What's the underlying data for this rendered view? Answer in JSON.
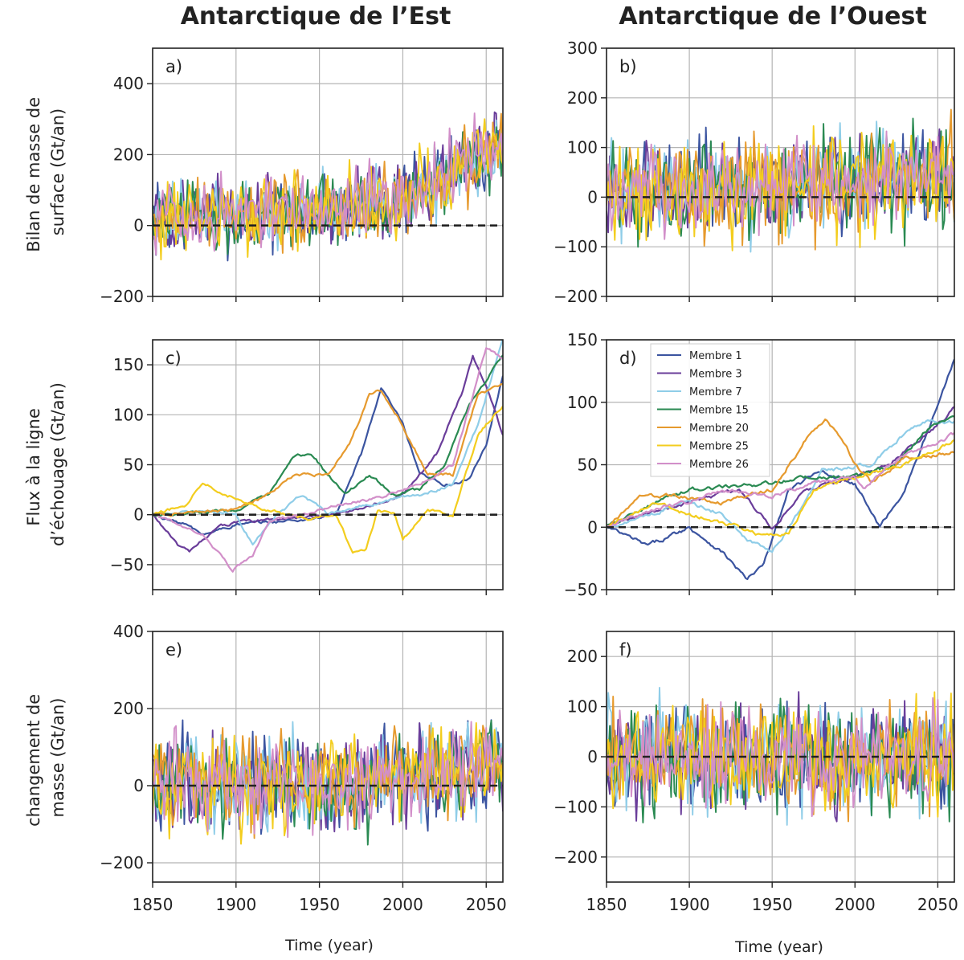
{
  "figure": {
    "columns": [
      "Antarctique de l’Est",
      "Antarctique de l’Ouest"
    ],
    "xlabel": "Time (year)",
    "xticks": [
      1850,
      1900,
      1950,
      2000,
      2050
    ],
    "xlim": [
      1850,
      2060
    ],
    "rows": [
      {
        "ylabel_lines": [
          "Bilan de masse de",
          "surface (Gt/an)"
        ]
      },
      {
        "ylabel_lines": [
          "Flux à la ligne",
          "d’échouage (Gt/an)"
        ]
      },
      {
        "ylabel_lines": [
          "changement de",
          "masse (Gt/an)"
        ]
      }
    ]
  },
  "chart_data": [
    {
      "id": "a",
      "type": "line",
      "label": "a)",
      "region": "Antarctique de l’Est",
      "ylim": [
        -200,
        500
      ],
      "yticks": [
        -200,
        0,
        200,
        400
      ],
      "xlim": [
        1850,
        2060
      ],
      "kind": "noise",
      "base": [
        [
          1850,
          20
        ],
        [
          1950,
          45
        ],
        [
          2000,
          70
        ],
        [
          2060,
          230
        ]
      ],
      "amp": 60
    },
    {
      "id": "b",
      "type": "line",
      "label": "b)",
      "region": "Antarctique de l’Ouest",
      "ylim": [
        -200,
        300
      ],
      "yticks": [
        -200,
        -100,
        0,
        100,
        200,
        300
      ],
      "xlim": [
        1850,
        2060
      ],
      "kind": "noise",
      "base": [
        [
          1850,
          10
        ],
        [
          2060,
          40
        ]
      ],
      "amp": 55
    },
    {
      "id": "c",
      "type": "line",
      "label": "c)",
      "region": "Antarctique de l’Est",
      "ylim": [
        -75,
        175
      ],
      "yticks": [
        -50,
        0,
        50,
        100,
        150
      ],
      "xlim": [
        1850,
        2060
      ],
      "kind": "smooth",
      "members": {
        "Membre 1": [
          [
            1850,
            0
          ],
          [
            1870,
            -10
          ],
          [
            1880,
            -20
          ],
          [
            1900,
            -10
          ],
          [
            1940,
            -5
          ],
          [
            1960,
            0
          ],
          [
            1975,
            60
          ],
          [
            1987,
            127
          ],
          [
            2000,
            90
          ],
          [
            2010,
            40
          ],
          [
            2025,
            30
          ],
          [
            2040,
            35
          ],
          [
            2050,
            70
          ],
          [
            2060,
            140
          ]
        ],
        "Membre 3": [
          [
            1850,
            0
          ],
          [
            1865,
            -30
          ],
          [
            1872,
            -38
          ],
          [
            1890,
            -10
          ],
          [
            1920,
            -5
          ],
          [
            1960,
            0
          ],
          [
            2000,
            20
          ],
          [
            2020,
            60
          ],
          [
            2035,
            120
          ],
          [
            2042,
            158
          ],
          [
            2050,
            130
          ],
          [
            2060,
            80
          ]
        ],
        "Membre 7": [
          [
            1850,
            0
          ],
          [
            1880,
            5
          ],
          [
            1900,
            0
          ],
          [
            1910,
            -30
          ],
          [
            1925,
            0
          ],
          [
            1940,
            20
          ],
          [
            1955,
            0
          ],
          [
            1980,
            10
          ],
          [
            2010,
            20
          ],
          [
            2030,
            30
          ],
          [
            2045,
            90
          ],
          [
            2060,
            175
          ]
        ],
        "Membre 15": [
          [
            1850,
            0
          ],
          [
            1900,
            5
          ],
          [
            1920,
            20
          ],
          [
            1935,
            58
          ],
          [
            1945,
            62
          ],
          [
            1955,
            40
          ],
          [
            1965,
            20
          ],
          [
            1980,
            40
          ],
          [
            1995,
            20
          ],
          [
            2010,
            25
          ],
          [
            2025,
            50
          ],
          [
            2040,
            110
          ],
          [
            2060,
            160
          ]
        ],
        "Membre 20": [
          [
            1850,
            0
          ],
          [
            1900,
            5
          ],
          [
            1920,
            20
          ],
          [
            1935,
            40
          ],
          [
            1955,
            40
          ],
          [
            1968,
            70
          ],
          [
            1980,
            120
          ],
          [
            1987,
            125
          ],
          [
            2000,
            90
          ],
          [
            2015,
            40
          ],
          [
            2030,
            40
          ],
          [
            2045,
            120
          ],
          [
            2060,
            130
          ]
        ],
        "Membre 25": [
          [
            1850,
            0
          ],
          [
            1870,
            10
          ],
          [
            1880,
            33
          ],
          [
            1895,
            20
          ],
          [
            1910,
            10
          ],
          [
            1930,
            0
          ],
          [
            1945,
            -5
          ],
          [
            1960,
            0
          ],
          [
            1970,
            -38
          ],
          [
            1978,
            -35
          ],
          [
            1985,
            5
          ],
          [
            1995,
            0
          ],
          [
            2000,
            -25
          ],
          [
            2015,
            5
          ],
          [
            2030,
            0
          ],
          [
            2045,
            80
          ],
          [
            2060,
            110
          ]
        ],
        "Membre 26": [
          [
            1850,
            0
          ],
          [
            1880,
            -20
          ],
          [
            1890,
            -40
          ],
          [
            1898,
            -55
          ],
          [
            1910,
            -40
          ],
          [
            1920,
            -5
          ],
          [
            1945,
            0
          ],
          [
            1960,
            10
          ],
          [
            1980,
            15
          ],
          [
            2010,
            30
          ],
          [
            2030,
            50
          ],
          [
            2050,
            168
          ],
          [
            2060,
            155
          ]
        ]
      }
    },
    {
      "id": "d",
      "type": "line",
      "label": "d)",
      "region": "Antarctique de l’Ouest",
      "ylim": [
        -50,
        150
      ],
      "yticks": [
        -50,
        0,
        50,
        100,
        150
      ],
      "xlim": [
        1850,
        2060
      ],
      "kind": "smooth",
      "legend": [
        "Membre 1",
        "Membre 3",
        "Membre 7",
        "Membre 15",
        "Membre 20",
        "Membre 25",
        "Membre 26"
      ],
      "members": {
        "Membre 1": [
          [
            1850,
            0
          ],
          [
            1875,
            -15
          ],
          [
            1900,
            0
          ],
          [
            1920,
            -20
          ],
          [
            1935,
            -42
          ],
          [
            1945,
            -30
          ],
          [
            1960,
            30
          ],
          [
            1980,
            45
          ],
          [
            2000,
            35
          ],
          [
            2015,
            0
          ],
          [
            2030,
            30
          ],
          [
            2045,
            80
          ],
          [
            2060,
            135
          ]
        ],
        "Membre 3": [
          [
            1850,
            0
          ],
          [
            1870,
            10
          ],
          [
            1900,
            20
          ],
          [
            1930,
            30
          ],
          [
            1950,
            0
          ],
          [
            1970,
            30
          ],
          [
            2000,
            40
          ],
          [
            2020,
            50
          ],
          [
            2040,
            70
          ],
          [
            2060,
            95
          ]
        ],
        "Membre 7": [
          [
            1850,
            0
          ],
          [
            1875,
            10
          ],
          [
            1900,
            20
          ],
          [
            1920,
            10
          ],
          [
            1935,
            -10
          ],
          [
            1950,
            -20
          ],
          [
            1965,
            10
          ],
          [
            1980,
            45
          ],
          [
            2010,
            50
          ],
          [
            2030,
            75
          ],
          [
            2045,
            85
          ],
          [
            2060,
            85
          ]
        ],
        "Membre 15": [
          [
            1850,
            0
          ],
          [
            1880,
            20
          ],
          [
            1900,
            30
          ],
          [
            1950,
            35
          ],
          [
            1970,
            40
          ],
          [
            2000,
            40
          ],
          [
            2025,
            50
          ],
          [
            2045,
            80
          ],
          [
            2060,
            90
          ]
        ],
        "Membre 20": [
          [
            1850,
            0
          ],
          [
            1870,
            25
          ],
          [
            1890,
            25
          ],
          [
            1920,
            20
          ],
          [
            1950,
            30
          ],
          [
            1970,
            70
          ],
          [
            1982,
            85
          ],
          [
            1995,
            65
          ],
          [
            2000,
            50
          ],
          [
            2010,
            35
          ],
          [
            2030,
            55
          ],
          [
            2060,
            60
          ]
        ],
        "Membre 25": [
          [
            1850,
            0
          ],
          [
            1880,
            20
          ],
          [
            1900,
            10
          ],
          [
            1930,
            0
          ],
          [
            1940,
            -5
          ],
          [
            1960,
            -5
          ],
          [
            1975,
            30
          ],
          [
            2000,
            40
          ],
          [
            2030,
            50
          ],
          [
            2060,
            70
          ]
        ],
        "Membre 26": [
          [
            1850,
            0
          ],
          [
            1880,
            15
          ],
          [
            1900,
            20
          ],
          [
            1920,
            30
          ],
          [
            1950,
            25
          ],
          [
            1975,
            35
          ],
          [
            2000,
            40
          ],
          [
            2005,
            30
          ],
          [
            2020,
            50
          ],
          [
            2060,
            75
          ]
        ]
      }
    },
    {
      "id": "e",
      "type": "line",
      "label": "e)",
      "region": "Antarctique de l’Est",
      "ylim": [
        -250,
        400
      ],
      "yticks": [
        -200,
        0,
        200,
        400
      ],
      "xlim": [
        1850,
        2060
      ],
      "kind": "noise",
      "base": [
        [
          1850,
          10
        ],
        [
          1980,
          10
        ],
        [
          2060,
          60
        ]
      ],
      "amp": 70
    },
    {
      "id": "f",
      "type": "line",
      "label": "f)",
      "region": "Antarctique de l’Ouest",
      "ylim": [
        -250,
        250
      ],
      "yticks": [
        -200,
        -100,
        0,
        100,
        200
      ],
      "xlim": [
        1850,
        2060
      ],
      "kind": "noise",
      "base": [
        [
          1850,
          0
        ],
        [
          2060,
          0
        ]
      ],
      "amp": 60
    }
  ],
  "series_colors": {
    "Membre 1": "#3b54a0",
    "Membre 3": "#6a3d9a",
    "Membre 7": "#8fcde8",
    "Membre 15": "#2a8a52",
    "Membre 20": "#e69a2e",
    "Membre 25": "#f3cd1e",
    "Membre 26": "#d28fc9"
  },
  "style": {
    "grid_color": "#b4b4b4",
    "zero_line_color": "#222222"
  }
}
